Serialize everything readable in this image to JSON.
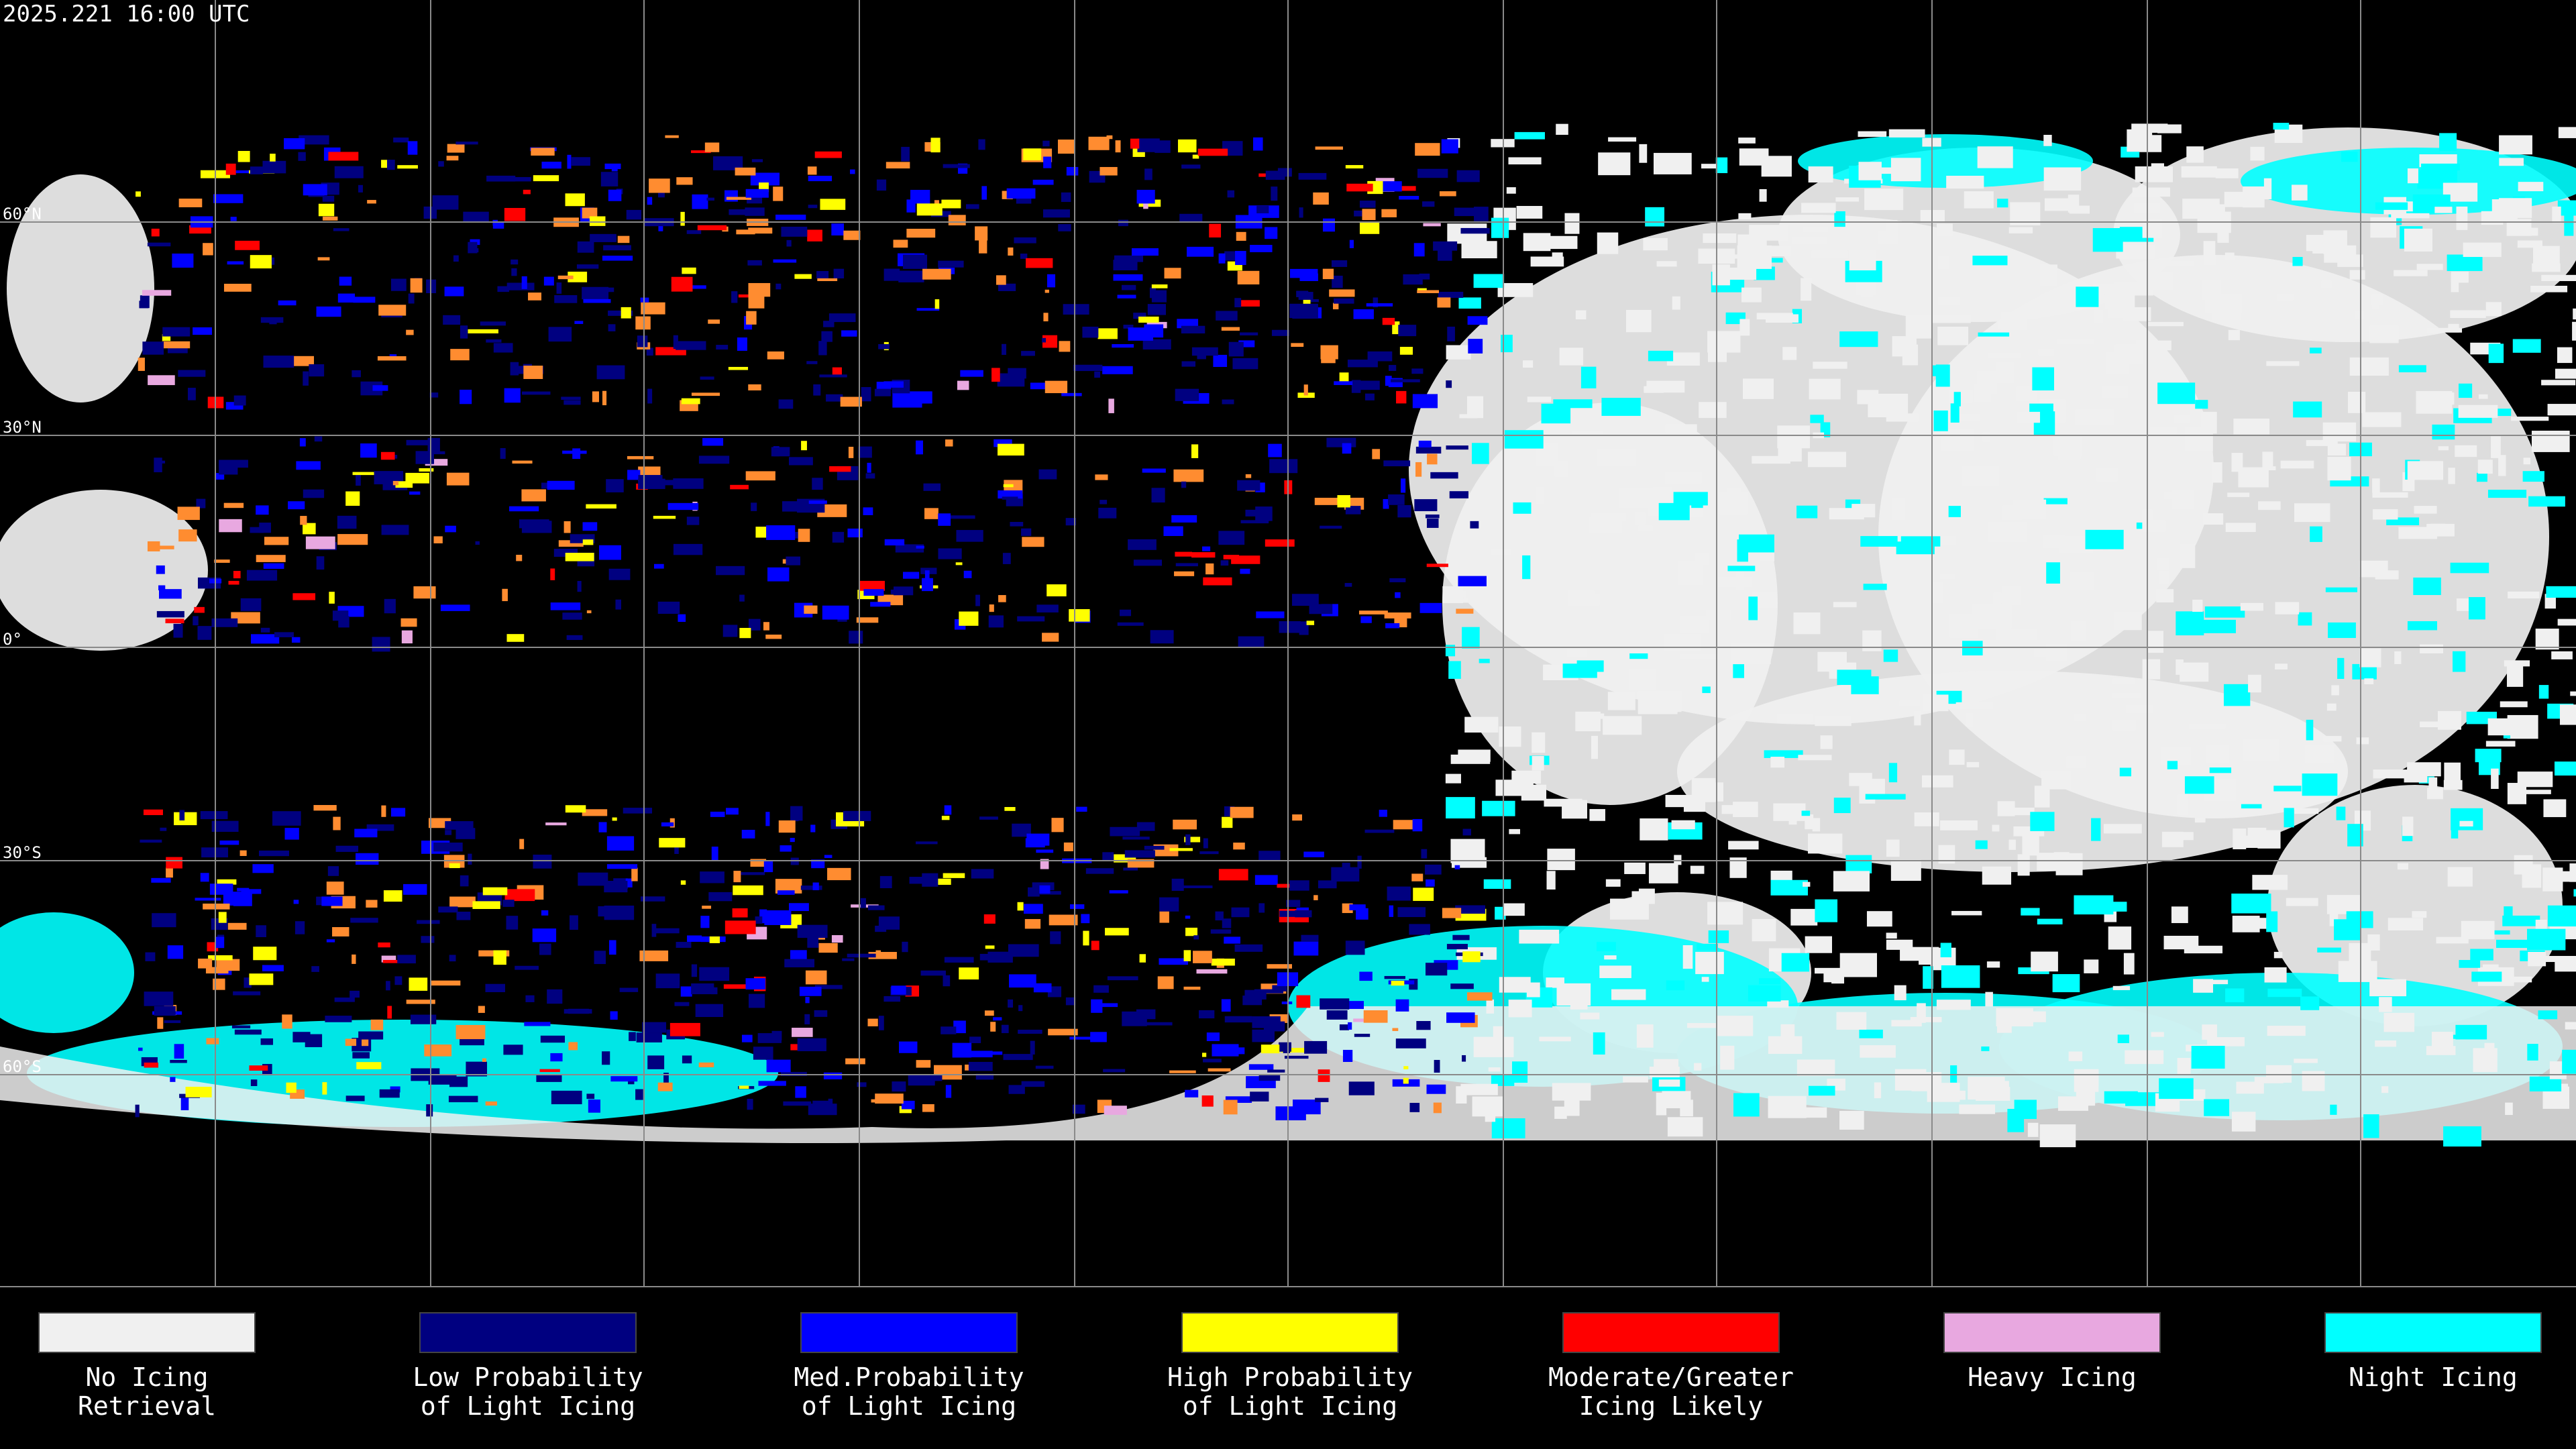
{
  "header": {
    "timestamp": "2025.221 16:00 UTC"
  },
  "grid": {
    "latitude_labels": [
      "60°N",
      "30°N",
      "0°",
      "30°S",
      "60°S"
    ]
  },
  "legend": {
    "items": [
      {
        "lines": [
          "No Icing",
          "Retrieval"
        ],
        "color": "#f0f0f0"
      },
      {
        "lines": [
          "Low Probability",
          "of Light Icing"
        ],
        "color": "#000080"
      },
      {
        "lines": [
          "Med.Probability",
          "of Light Icing"
        ],
        "color": "#0000ff"
      },
      {
        "lines": [
          "High Probability",
          "of Light Icing"
        ],
        "color": "#ffff00"
      },
      {
        "lines": [
          "Moderate/Greater",
          "Icing Likely"
        ],
        "color": "#ff0000"
      },
      {
        "lines": [
          "Heavy Icing"
        ],
        "color": "#e8a8e0"
      },
      {
        "lines": [
          "Night Icing"
        ],
        "color": "#00ffff"
      }
    ]
  }
}
